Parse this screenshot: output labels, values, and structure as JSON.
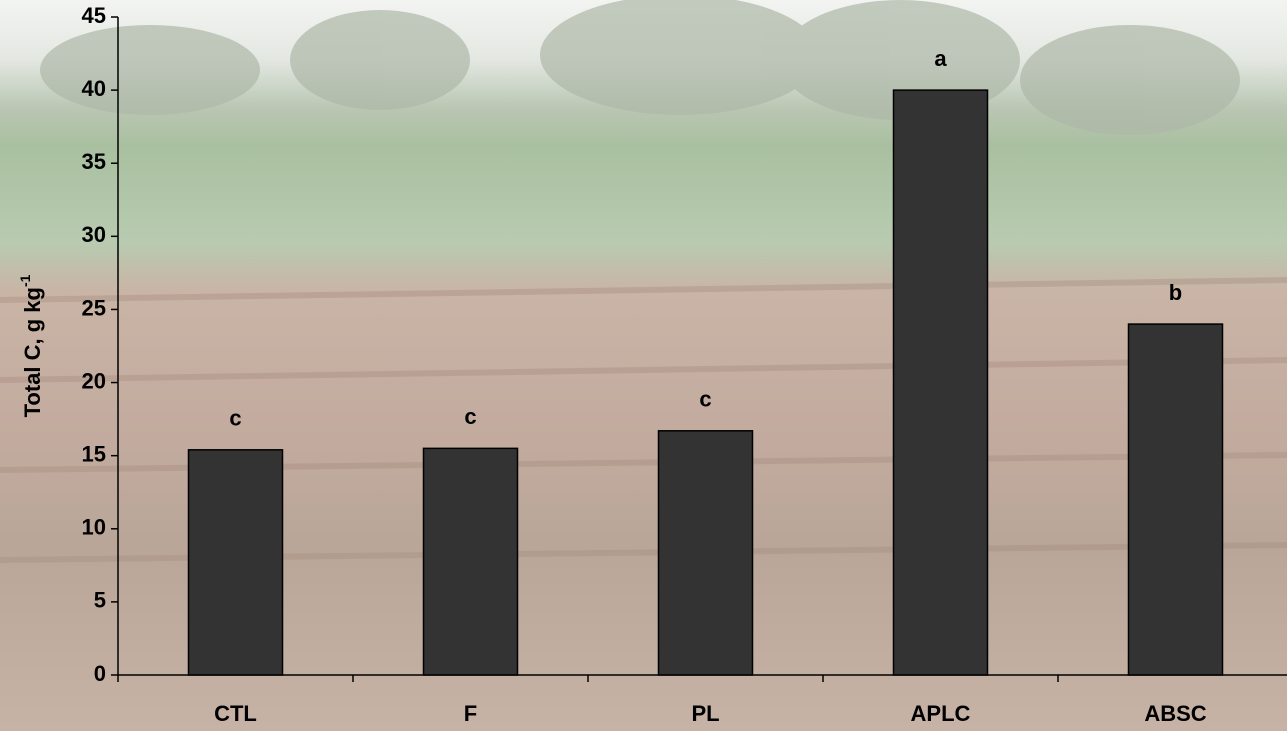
{
  "chart_data": {
    "type": "bar",
    "ylabel": {
      "text": "Total C, g kg",
      "superscript": "-1"
    },
    "categories": [
      "CTL",
      "F",
      "PL",
      "APLC",
      "ABSC"
    ],
    "values": [
      15.4,
      15.5,
      16.7,
      40,
      24
    ],
    "annotations": [
      "c",
      "c",
      "c",
      "a",
      "b"
    ],
    "color": "#333333",
    "ylim": [
      0,
      45
    ],
    "yticks": [
      0,
      5,
      10,
      15,
      20,
      25,
      30,
      35,
      40,
      45
    ]
  }
}
